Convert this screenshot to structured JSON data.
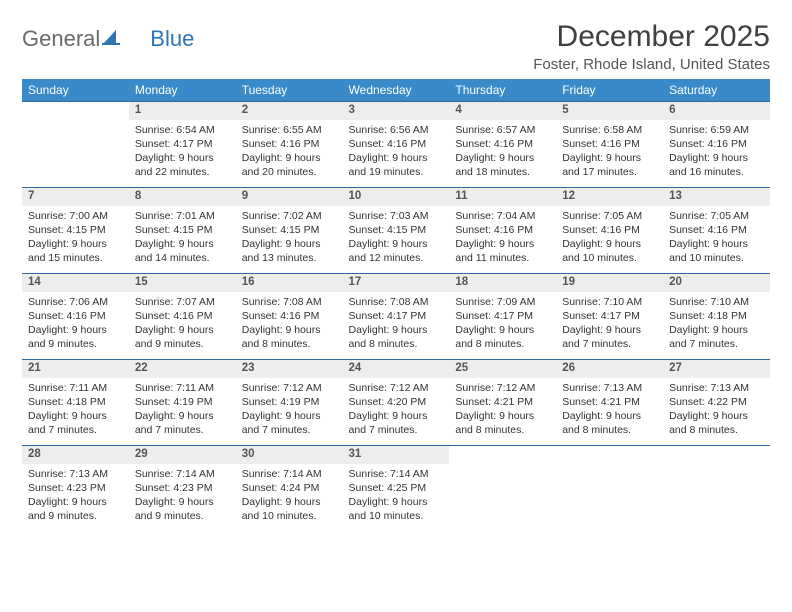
{
  "logo": {
    "textGray": "General",
    "textBlue": "Blue"
  },
  "title": "December 2025",
  "location": "Foster, Rhode Island, United States",
  "colors": {
    "headerBg": "#3a8ac9",
    "headerText": "#ffffff",
    "dayNumBg": "#ededed",
    "borderColor": "#2e6ca3",
    "bodyText": "#333333",
    "logoGray": "#6a6a6a",
    "logoBlue": "#2e75b6"
  },
  "dayHeaders": [
    "Sunday",
    "Monday",
    "Tuesday",
    "Wednesday",
    "Thursday",
    "Friday",
    "Saturday"
  ],
  "weeks": [
    [
      null,
      {
        "n": "1",
        "sr": "6:54 AM",
        "ss": "4:17 PM",
        "dl": "9 hours and 22 minutes."
      },
      {
        "n": "2",
        "sr": "6:55 AM",
        "ss": "4:16 PM",
        "dl": "9 hours and 20 minutes."
      },
      {
        "n": "3",
        "sr": "6:56 AM",
        "ss": "4:16 PM",
        "dl": "9 hours and 19 minutes."
      },
      {
        "n": "4",
        "sr": "6:57 AM",
        "ss": "4:16 PM",
        "dl": "9 hours and 18 minutes."
      },
      {
        "n": "5",
        "sr": "6:58 AM",
        "ss": "4:16 PM",
        "dl": "9 hours and 17 minutes."
      },
      {
        "n": "6",
        "sr": "6:59 AM",
        "ss": "4:16 PM",
        "dl": "9 hours and 16 minutes."
      }
    ],
    [
      {
        "n": "7",
        "sr": "7:00 AM",
        "ss": "4:15 PM",
        "dl": "9 hours and 15 minutes."
      },
      {
        "n": "8",
        "sr": "7:01 AM",
        "ss": "4:15 PM",
        "dl": "9 hours and 14 minutes."
      },
      {
        "n": "9",
        "sr": "7:02 AM",
        "ss": "4:15 PM",
        "dl": "9 hours and 13 minutes."
      },
      {
        "n": "10",
        "sr": "7:03 AM",
        "ss": "4:15 PM",
        "dl": "9 hours and 12 minutes."
      },
      {
        "n": "11",
        "sr": "7:04 AM",
        "ss": "4:16 PM",
        "dl": "9 hours and 11 minutes."
      },
      {
        "n": "12",
        "sr": "7:05 AM",
        "ss": "4:16 PM",
        "dl": "9 hours and 10 minutes."
      },
      {
        "n": "13",
        "sr": "7:05 AM",
        "ss": "4:16 PM",
        "dl": "9 hours and 10 minutes."
      }
    ],
    [
      {
        "n": "14",
        "sr": "7:06 AM",
        "ss": "4:16 PM",
        "dl": "9 hours and 9 minutes."
      },
      {
        "n": "15",
        "sr": "7:07 AM",
        "ss": "4:16 PM",
        "dl": "9 hours and 9 minutes."
      },
      {
        "n": "16",
        "sr": "7:08 AM",
        "ss": "4:16 PM",
        "dl": "9 hours and 8 minutes."
      },
      {
        "n": "17",
        "sr": "7:08 AM",
        "ss": "4:17 PM",
        "dl": "9 hours and 8 minutes."
      },
      {
        "n": "18",
        "sr": "7:09 AM",
        "ss": "4:17 PM",
        "dl": "9 hours and 8 minutes."
      },
      {
        "n": "19",
        "sr": "7:10 AM",
        "ss": "4:17 PM",
        "dl": "9 hours and 7 minutes."
      },
      {
        "n": "20",
        "sr": "7:10 AM",
        "ss": "4:18 PM",
        "dl": "9 hours and 7 minutes."
      }
    ],
    [
      {
        "n": "21",
        "sr": "7:11 AM",
        "ss": "4:18 PM",
        "dl": "9 hours and 7 minutes."
      },
      {
        "n": "22",
        "sr": "7:11 AM",
        "ss": "4:19 PM",
        "dl": "9 hours and 7 minutes."
      },
      {
        "n": "23",
        "sr": "7:12 AM",
        "ss": "4:19 PM",
        "dl": "9 hours and 7 minutes."
      },
      {
        "n": "24",
        "sr": "7:12 AM",
        "ss": "4:20 PM",
        "dl": "9 hours and 7 minutes."
      },
      {
        "n": "25",
        "sr": "7:12 AM",
        "ss": "4:21 PM",
        "dl": "9 hours and 8 minutes."
      },
      {
        "n": "26",
        "sr": "7:13 AM",
        "ss": "4:21 PM",
        "dl": "9 hours and 8 minutes."
      },
      {
        "n": "27",
        "sr": "7:13 AM",
        "ss": "4:22 PM",
        "dl": "9 hours and 8 minutes."
      }
    ],
    [
      {
        "n": "28",
        "sr": "7:13 AM",
        "ss": "4:23 PM",
        "dl": "9 hours and 9 minutes."
      },
      {
        "n": "29",
        "sr": "7:14 AM",
        "ss": "4:23 PM",
        "dl": "9 hours and 9 minutes."
      },
      {
        "n": "30",
        "sr": "7:14 AM",
        "ss": "4:24 PM",
        "dl": "9 hours and 10 minutes."
      },
      {
        "n": "31",
        "sr": "7:14 AM",
        "ss": "4:25 PM",
        "dl": "9 hours and 10 minutes."
      },
      null,
      null,
      null
    ]
  ],
  "labels": {
    "sunrise": "Sunrise:",
    "sunset": "Sunset:",
    "daylight": "Daylight:"
  }
}
